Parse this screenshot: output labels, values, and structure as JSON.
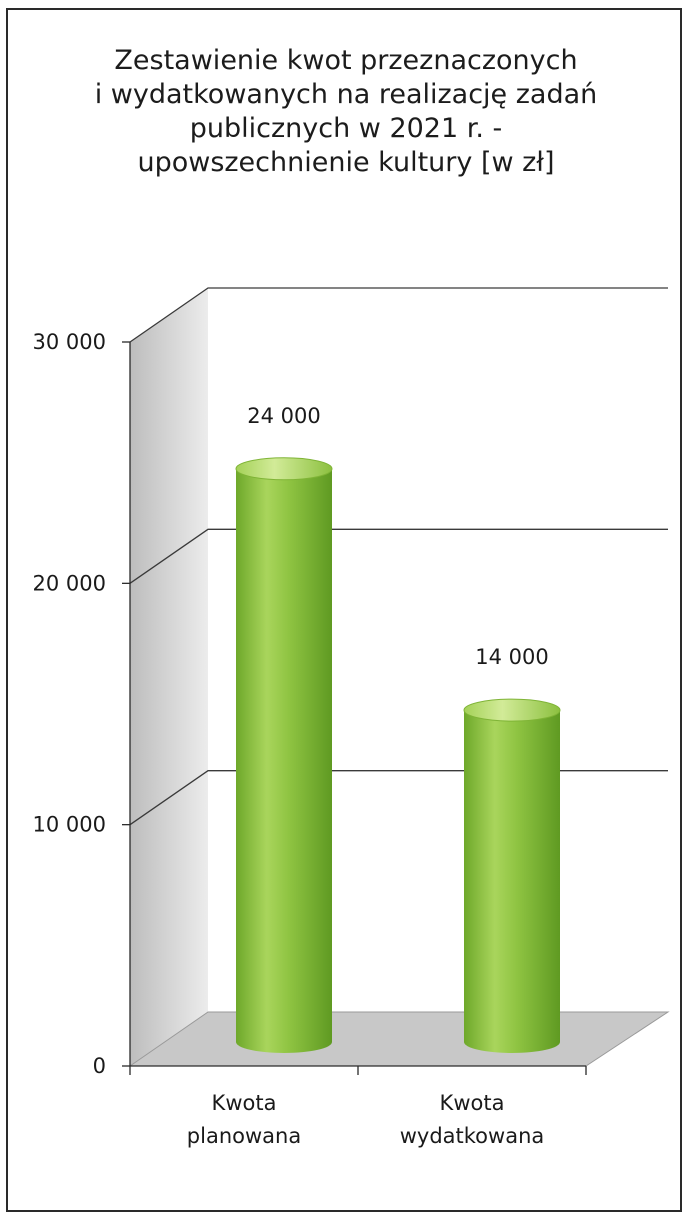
{
  "chart_data": {
    "type": "bar",
    "style": "3d-cylinder",
    "title_lines": [
      "Zestawienie kwot przeznaczonych",
      "i  wydatkowanych na realizację zadań",
      "publicznych w 2021 r. -",
      "upowszechnienie kultury [w zł]"
    ],
    "categories": [
      [
        "Kwota",
        "planowana"
      ],
      [
        "Kwota",
        "wydatkowana"
      ]
    ],
    "values": [
      24000,
      14000
    ],
    "data_labels": [
      "24 000",
      "14 000"
    ],
    "ylim": [
      0,
      30000
    ],
    "yticks": [
      {
        "value": 0,
        "label": "0"
      },
      {
        "value": 10000,
        "label": "10 000"
      },
      {
        "value": 20000,
        "label": "20 000"
      },
      {
        "value": 30000,
        "label": "30 000"
      }
    ],
    "grid": true,
    "legend": "none",
    "colors": {
      "bar_light": "#c3e27d",
      "bar_mid": "#8fc442",
      "bar_dark": "#5f9a22",
      "wall": "#d9d9d9",
      "floor": "#c8c8c8",
      "grid": "#3a3a3a"
    }
  }
}
